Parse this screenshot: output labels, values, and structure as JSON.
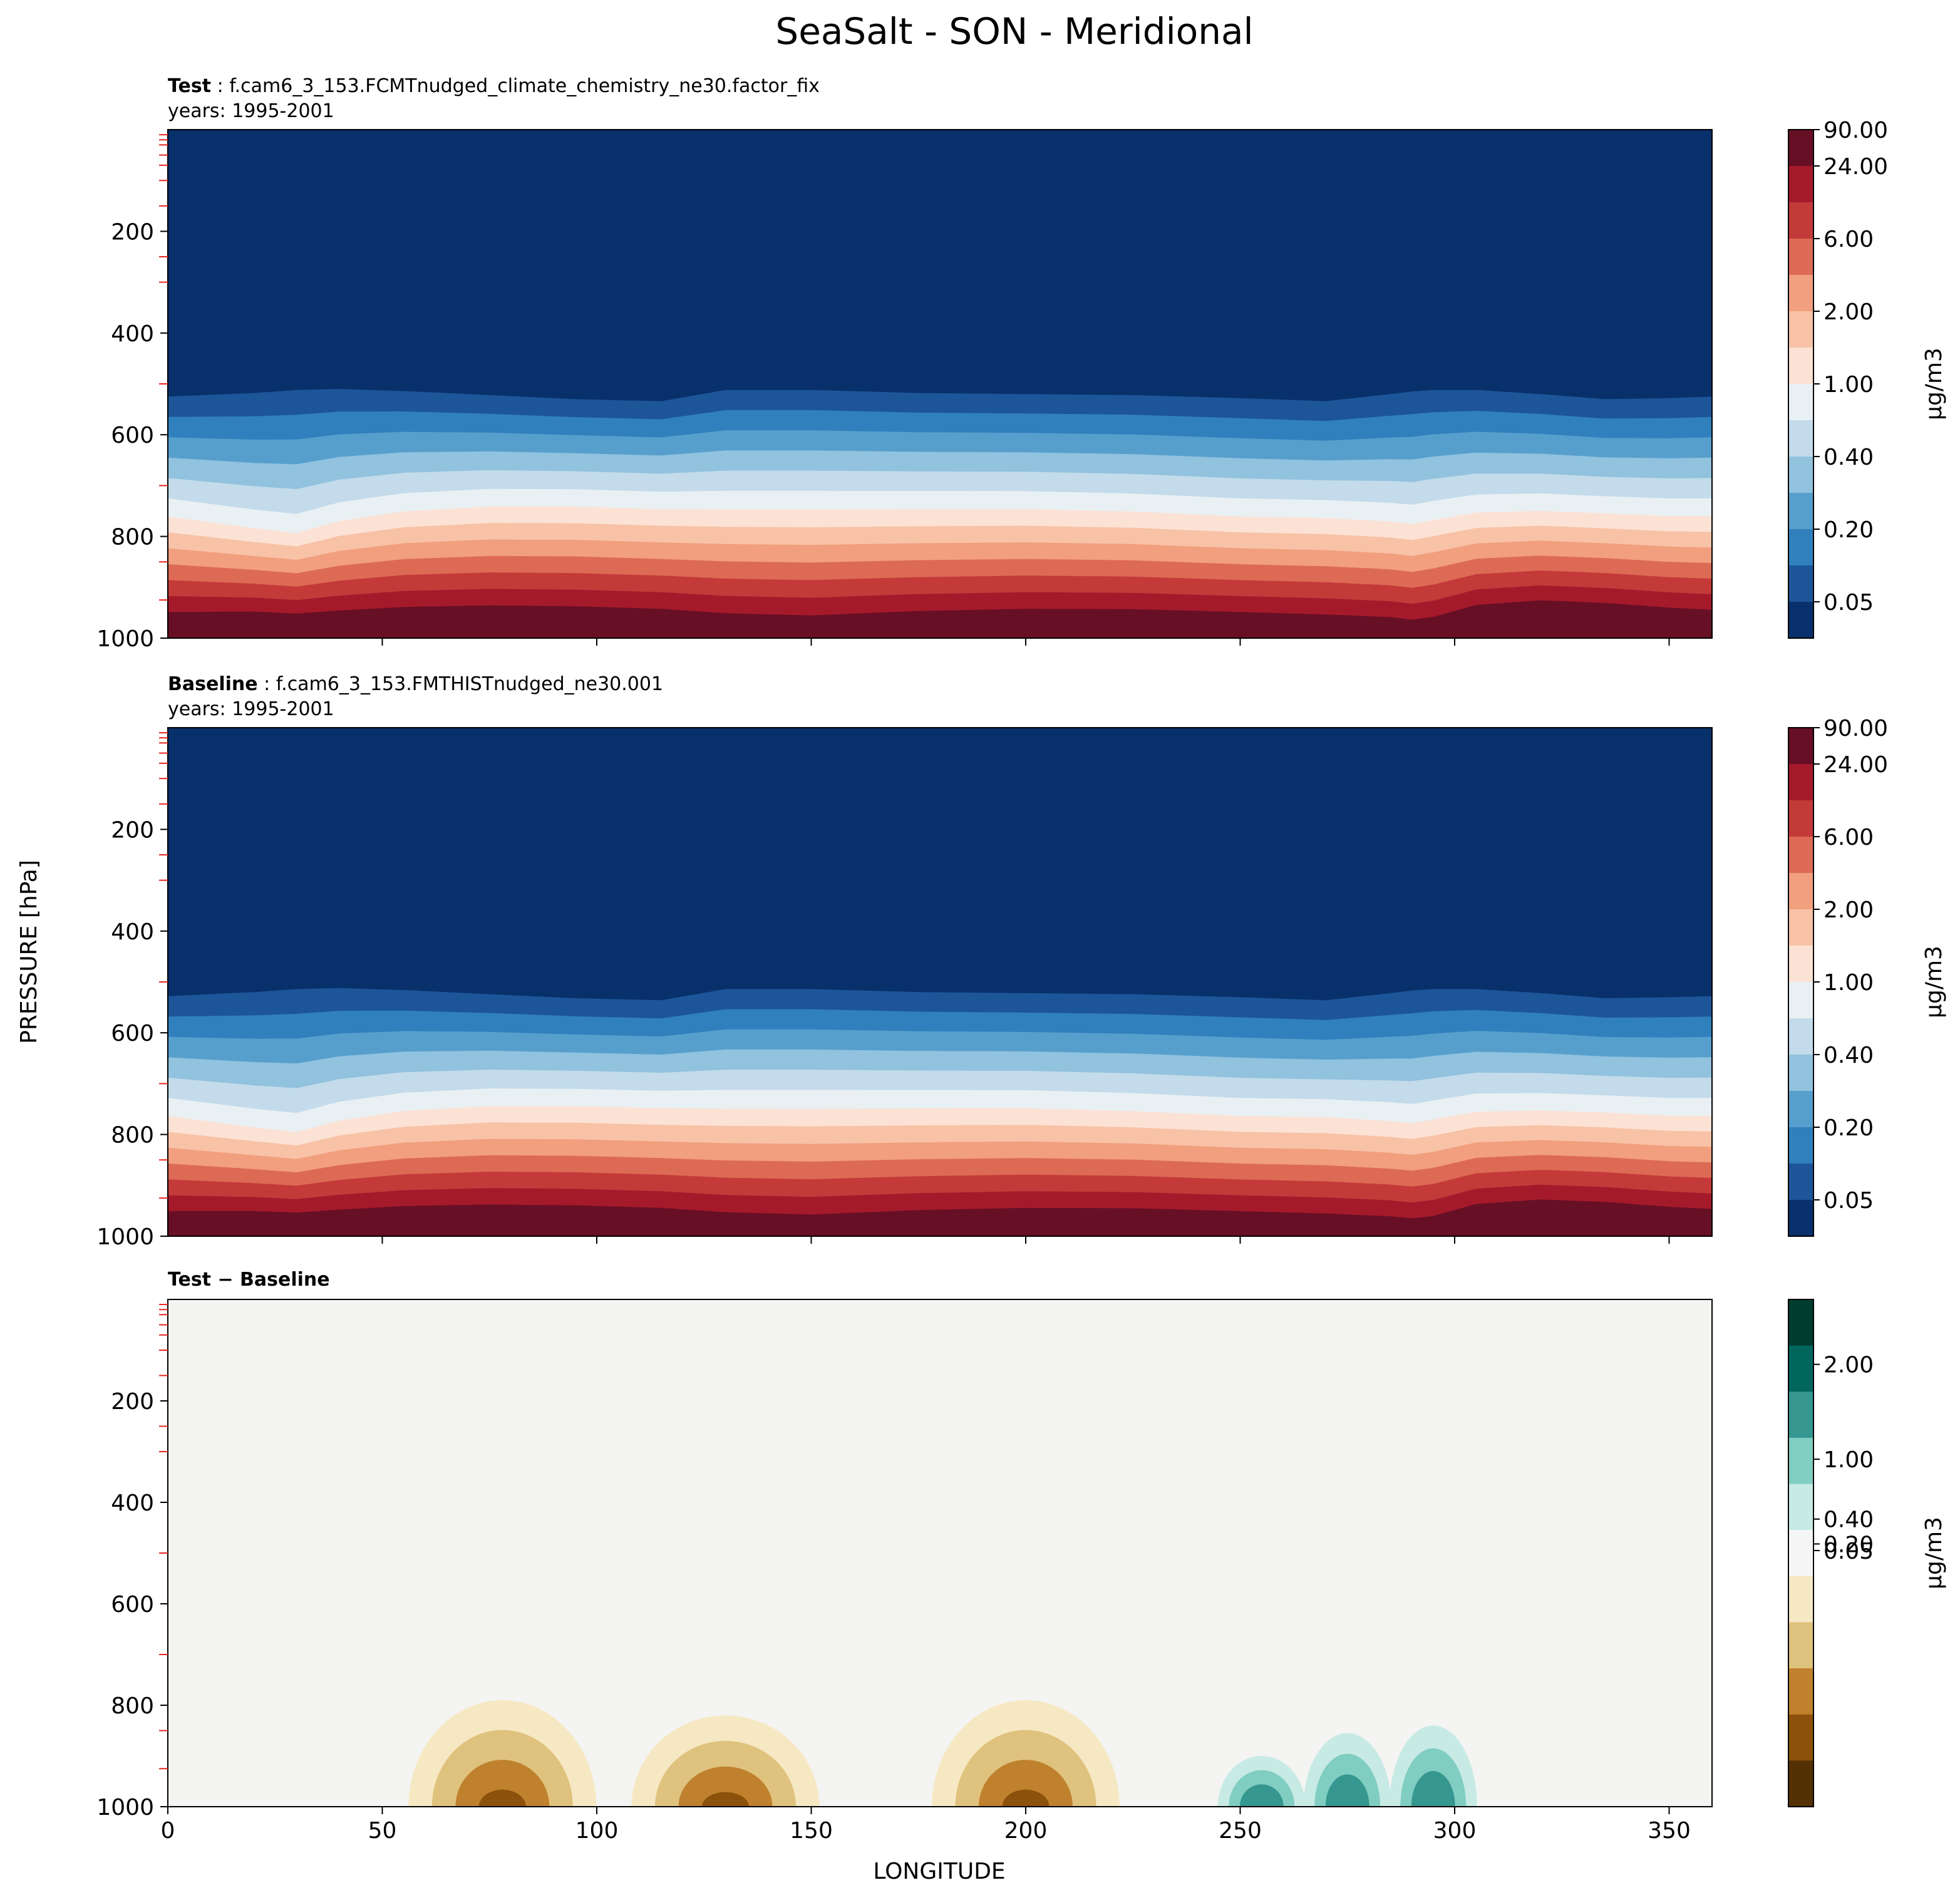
{
  "figure": {
    "title": "SeaSalt - SON - Meridional",
    "ylabel": "PRESSURE [hPa]",
    "xlabel": "LONGITUDE"
  },
  "chart_data": [
    {
      "type": "heatmap",
      "panel": "test",
      "title_bold": "Test",
      "title_rest": ": f.cam6_3_153.FCMTnudged_climate_chemistry_ne30.factor_fix",
      "subtitle": "years: 1995-2001",
      "xlim": [
        0,
        360
      ],
      "ylim": [
        1000,
        0
      ],
      "yticks": [
        200,
        400,
        600,
        800,
        1000
      ],
      "xticks": [
        50,
        100,
        150,
        200,
        250,
        300,
        350
      ],
      "colorbar": {
        "label": "μg/m3",
        "ticks": [
          "0.05",
          "0.20",
          "0.40",
          "1.00",
          "2.00",
          "6.00",
          "24.00",
          "90.00"
        ],
        "colors": [
          "#08306b",
          "#1d5599",
          "#3080bd",
          "#569fcd",
          "#91c2de",
          "#c3dbea",
          "#e9f0f4",
          "#fbe2d5",
          "#f8c2a6",
          "#f19f7f",
          "#dd6a55",
          "#c33a39",
          "#a51a2b",
          "#670f25"
        ]
      },
      "profile": {
        "lon": [
          0,
          20,
          30,
          40,
          55,
          75,
          95,
          115,
          130,
          150,
          175,
          200,
          225,
          250,
          270,
          285,
          290,
          295,
          305,
          320,
          335,
          350,
          360
        ],
        "p_blue_top": [
          525,
          518,
          512,
          510,
          514,
          522,
          530,
          534,
          512,
          512,
          518,
          520,
          522,
          528,
          534,
          520,
          515,
          512,
          512,
          520,
          530,
          528,
          525
        ],
        "p_white": [
          745,
          770,
          780,
          755,
          735,
          725,
          725,
          730,
          730,
          730,
          730,
          730,
          735,
          745,
          748,
          755,
          760,
          752,
          738,
          735,
          740,
          745,
          745
        ],
        "p_dark_red": [
          980,
          975,
          978,
          975,
          970,
          968,
          970,
          975,
          985,
          990,
          980,
          975,
          975,
          980,
          985,
          990,
          995,
          990,
          965,
          955,
          960,
          970,
          975
        ]
      }
    },
    {
      "type": "heatmap",
      "panel": "baseline",
      "title_bold": "Baseline",
      "title_rest": ": f.cam6_3_153.FMTHISTnudged_ne30.001",
      "subtitle": "years: 1995-2001",
      "xlim": [
        0,
        360
      ],
      "ylim": [
        1000,
        0
      ],
      "yticks": [
        200,
        400,
        600,
        800,
        1000
      ],
      "xticks": [
        50,
        100,
        150,
        200,
        250,
        300,
        350
      ],
      "colorbar": {
        "label": "μg/m3",
        "ticks": [
          "0.05",
          "0.20",
          "0.40",
          "1.00",
          "2.00",
          "6.00",
          "24.00",
          "90.00"
        ],
        "colors": [
          "#08306b",
          "#1d5599",
          "#3080bd",
          "#569fcd",
          "#91c2de",
          "#c3dbea",
          "#e9f0f4",
          "#fbe2d5",
          "#f8c2a6",
          "#f19f7f",
          "#dd6a55",
          "#c33a39",
          "#a51a2b",
          "#670f25"
        ]
      },
      "profile": {
        "lon": [
          0,
          20,
          30,
          40,
          55,
          75,
          95,
          115,
          130,
          150,
          175,
          200,
          225,
          250,
          270,
          285,
          290,
          295,
          305,
          320,
          335,
          350,
          360
        ],
        "p_blue_top": [
          528,
          520,
          514,
          512,
          516,
          524,
          532,
          536,
          514,
          514,
          520,
          522,
          524,
          530,
          536,
          522,
          517,
          514,
          514,
          522,
          532,
          530,
          528
        ],
        "p_white": [
          748,
          772,
          782,
          758,
          738,
          728,
          728,
          732,
          732,
          732,
          732,
          732,
          738,
          748,
          750,
          758,
          762,
          755,
          740,
          738,
          742,
          748,
          748
        ],
        "p_dark_red": [
          982,
          978,
          980,
          977,
          972,
          970,
          972,
          977,
          987,
          992,
          982,
          977,
          977,
          982,
          987,
          992,
          996,
          992,
          967,
          957,
          962,
          972,
          977
        ]
      }
    },
    {
      "type": "heatmap",
      "panel": "difference",
      "title_bold": "Test − Baseline",
      "xlim": [
        0,
        360
      ],
      "ylim": [
        1000,
        0
      ],
      "yticks": [
        200,
        400,
        600,
        800,
        1000
      ],
      "xticks": [
        0,
        50,
        100,
        150,
        200,
        250,
        300,
        350
      ],
      "colorbar": {
        "label": "μg/m3",
        "ticks": [
          "0.05",
          "0.20",
          "0.40",
          "1.00",
          "2.00"
        ],
        "colors": [
          "#543005",
          "#8c510a",
          "#bf812d",
          "#dfc27d",
          "#f6e8c3",
          "#f5f5f5",
          "#c7eae5",
          "#80cdc1",
          "#35978f",
          "#01665e",
          "#003c30"
        ]
      },
      "blobs": [
        {
          "lon": 78,
          "p_top": 790,
          "sign": "neg"
        },
        {
          "lon": 130,
          "p_top": 820,
          "sign": "neg"
        },
        {
          "lon": 200,
          "p_top": 790,
          "sign": "neg"
        },
        {
          "lon": 255,
          "p_top": 900,
          "sign": "pos"
        },
        {
          "lon": 275,
          "p_top": 855,
          "sign": "pos"
        },
        {
          "lon": 295,
          "p_top": 840,
          "sign": "pos"
        }
      ]
    }
  ]
}
